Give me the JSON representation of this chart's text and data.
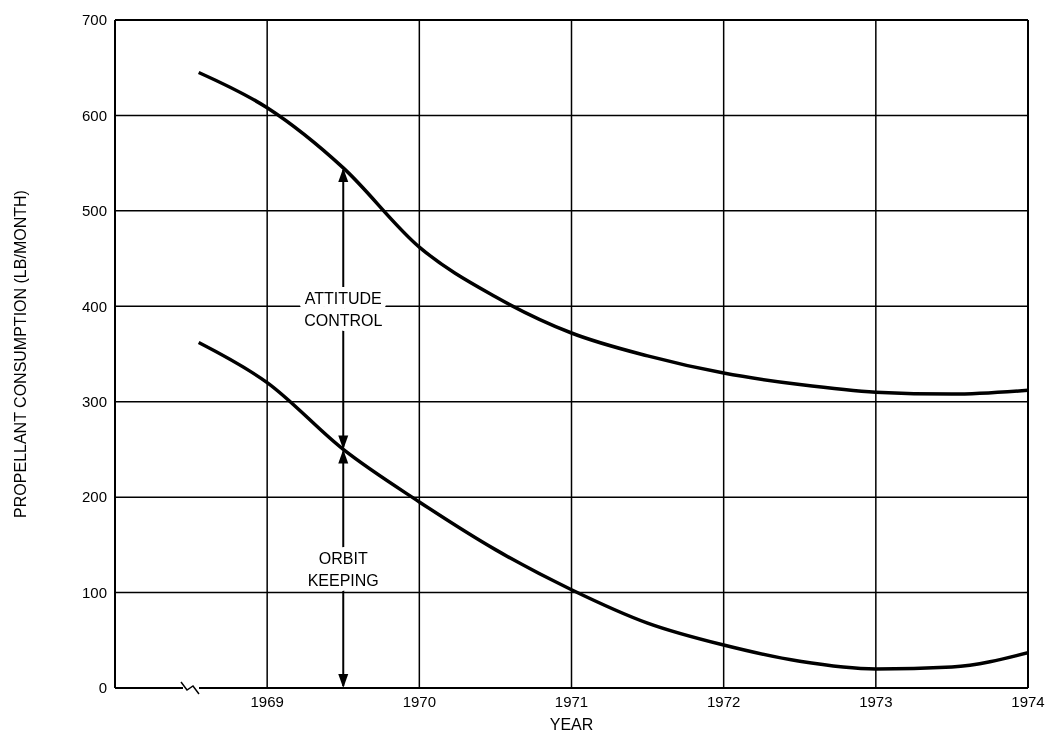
{
  "chart_data": {
    "type": "line",
    "xlabel": "YEAR",
    "ylabel": "PROPELLANT CONSUMPTION (LB/MONTH)",
    "x": [
      1968.55,
      1969,
      1969.5,
      1970,
      1970.5,
      1971,
      1971.5,
      1972,
      1972.5,
      1973,
      1973.5,
      1974
    ],
    "series": [
      {
        "color": "#000000",
        "values": [
          645,
          608,
          545,
          462,
          410,
          372,
          348,
          330,
          318,
          310,
          308,
          312
        ]
      },
      {
        "color": "#000000",
        "values": [
          362,
          320,
          250,
          195,
          145,
          103,
          68,
          45,
          28,
          20,
          22,
          37
        ]
      }
    ],
    "xlim": [
      1968,
      1974
    ],
    "xticks": [
      1969,
      1970,
      1971,
      1972,
      1973,
      1974
    ],
    "ylim": [
      0,
      700
    ],
    "yticks": [
      0,
      100,
      200,
      300,
      400,
      500,
      600,
      700
    ],
    "grid": true,
    "marker": "none",
    "line_style": "solid",
    "annotations": [
      "ATTITUDE CONTROL",
      "ORBIT KEEPING"
    ]
  }
}
